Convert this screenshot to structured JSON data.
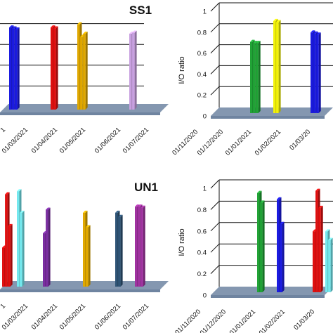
{
  "chart_data": [
    {
      "panel": "top-left",
      "type": "bar",
      "title": "SS1",
      "ylabel": "",
      "ylim": [
        0,
        1
      ],
      "gridlines": [
        0.2,
        0.4,
        0.6,
        0.8
      ],
      "x_tick_labels": [
        "1",
        "01/03/2021",
        "01/04/2021",
        "01/05/2021",
        "01/06/2021",
        "01/07/2021"
      ],
      "series": [
        {
          "color": "#1b1be0",
          "values": [
            0.79,
            0.78,
            0.77
          ]
        },
        {
          "color": "#e01010",
          "values": [
            0.79,
            0.78
          ]
        },
        {
          "color": "#e0a800",
          "values": [
            0.82,
            0.7,
            0.73
          ]
        },
        {
          "color": "#c8a0e0",
          "values": [
            0.73,
            0.74
          ]
        }
      ]
    },
    {
      "panel": "top-right",
      "type": "bar",
      "title": "",
      "ylabel": "I/O ratio",
      "ylim": [
        0,
        1
      ],
      "y_tick_labels": [
        "0",
        "0.2",
        "0.4",
        "0.6",
        "0.8",
        "1"
      ],
      "x_tick_labels": [
        "01/11/2020",
        "01/12/2020",
        "01/01/2021",
        "01/02/2021",
        "01/03/20"
      ],
      "series": [
        {
          "color": "#21a336",
          "values": [
            0.68,
            0.67,
            0.67
          ]
        },
        {
          "color": "#f2f20a",
          "values": [
            0.88,
            0.87
          ]
        },
        {
          "color": "#1b1be0",
          "values": [
            0.77,
            0.76,
            0.75
          ]
        }
      ]
    },
    {
      "panel": "bottom-left",
      "type": "bar",
      "title": "UN1",
      "ylabel": "",
      "ylim": [
        0,
        1
      ],
      "x_tick_labels": [
        "1",
        "01/03/2021",
        "01/04/2021",
        "01/05/2021",
        "01/06/2021",
        "01/07/2021"
      ],
      "series": [
        {
          "color": "#e01010",
          "values": [
            0.38,
            0.9,
            0.59
          ]
        },
        {
          "color": "#74e8ee",
          "values": [
            0.93,
            0.72
          ]
        },
        {
          "color": "#7a2ea0",
          "values": [
            0.52,
            0.75
          ]
        },
        {
          "color": "#e0a800",
          "values": [
            0.72,
            0.58
          ]
        },
        {
          "color": "#2f5476",
          "values": [
            0.72,
            0.68
          ]
        },
        {
          "color": "#a032a0",
          "values": [
            0.78,
            0.78,
            0.77
          ]
        }
      ]
    },
    {
      "panel": "bottom-right",
      "type": "bar",
      "title": "",
      "ylabel": "I/O ratio",
      "ylim": [
        0,
        1
      ],
      "y_tick_labels": [
        "0",
        "0.2",
        "0.4",
        "0.6",
        "0.8",
        "1"
      ],
      "x_tick_labels": [
        "01/11/2020",
        "01/12/2020",
        "01/01/2021",
        "01/02/2021",
        "01/03/20"
      ],
      "series": [
        {
          "color": "#21a336",
          "values": [
            0.93,
            0.84
          ]
        },
        {
          "color": "#1b1be0",
          "values": [
            0.87,
            0.64
          ]
        },
        {
          "color": "#e01010",
          "values": [
            0.57,
            0.95,
            0.79
          ]
        },
        {
          "color": "#74e8ee",
          "values": [
            0.57,
            0.49
          ]
        }
      ]
    }
  ]
}
